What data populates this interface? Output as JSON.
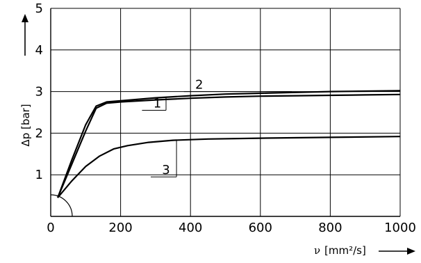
{
  "chart_data": {
    "type": "line",
    "xlabel_symbol": "ν",
    "xlabel_unit": "[mm²/s]",
    "ylabel": "Δp [bar]",
    "xlim": [
      0,
      1000
    ],
    "ylim": [
      0,
      5
    ],
    "x_ticks": [
      "0",
      "200",
      "400",
      "600",
      "800",
      "1000"
    ],
    "y_ticks": [
      "1",
      "2",
      "3",
      "4",
      "5"
    ],
    "grid": true,
    "series": [
      {
        "name": "1",
        "x": [
          20,
          60,
          100,
          130,
          160,
          200,
          300,
          400,
          500,
          600,
          700,
          800,
          900,
          1000
        ],
        "y": [
          0.45,
          1.25,
          2.05,
          2.6,
          2.72,
          2.75,
          2.8,
          2.84,
          2.87,
          2.89,
          2.9,
          2.91,
          2.92,
          2.93
        ]
      },
      {
        "name": "2",
        "x": [
          20,
          60,
          100,
          130,
          160,
          200,
          300,
          400,
          500,
          600,
          700,
          800,
          900,
          1000
        ],
        "y": [
          0.45,
          1.35,
          2.2,
          2.65,
          2.75,
          2.78,
          2.85,
          2.9,
          2.94,
          2.96,
          2.98,
          3.0,
          3.01,
          3.02
        ]
      },
      {
        "name": "3",
        "x": [
          20,
          60,
          100,
          140,
          180,
          220,
          280,
          350,
          450,
          600,
          800,
          1000
        ],
        "y": [
          0.45,
          0.85,
          1.2,
          1.45,
          1.62,
          1.7,
          1.78,
          1.83,
          1.86,
          1.88,
          1.9,
          1.92
        ]
      }
    ],
    "callouts": [
      {
        "name": "1",
        "label_x": 305,
        "label_y": 2.55,
        "attach_x": 330,
        "attach_y": 2.86
      },
      {
        "name": "2",
        "label_x": 425,
        "label_y": 3.0,
        "attach_x": 690,
        "attach_y": 2.98
      },
      {
        "name": "3",
        "label_x": 330,
        "label_y": 0.95,
        "attach_x": 360,
        "attach_y": 1.83
      }
    ]
  }
}
